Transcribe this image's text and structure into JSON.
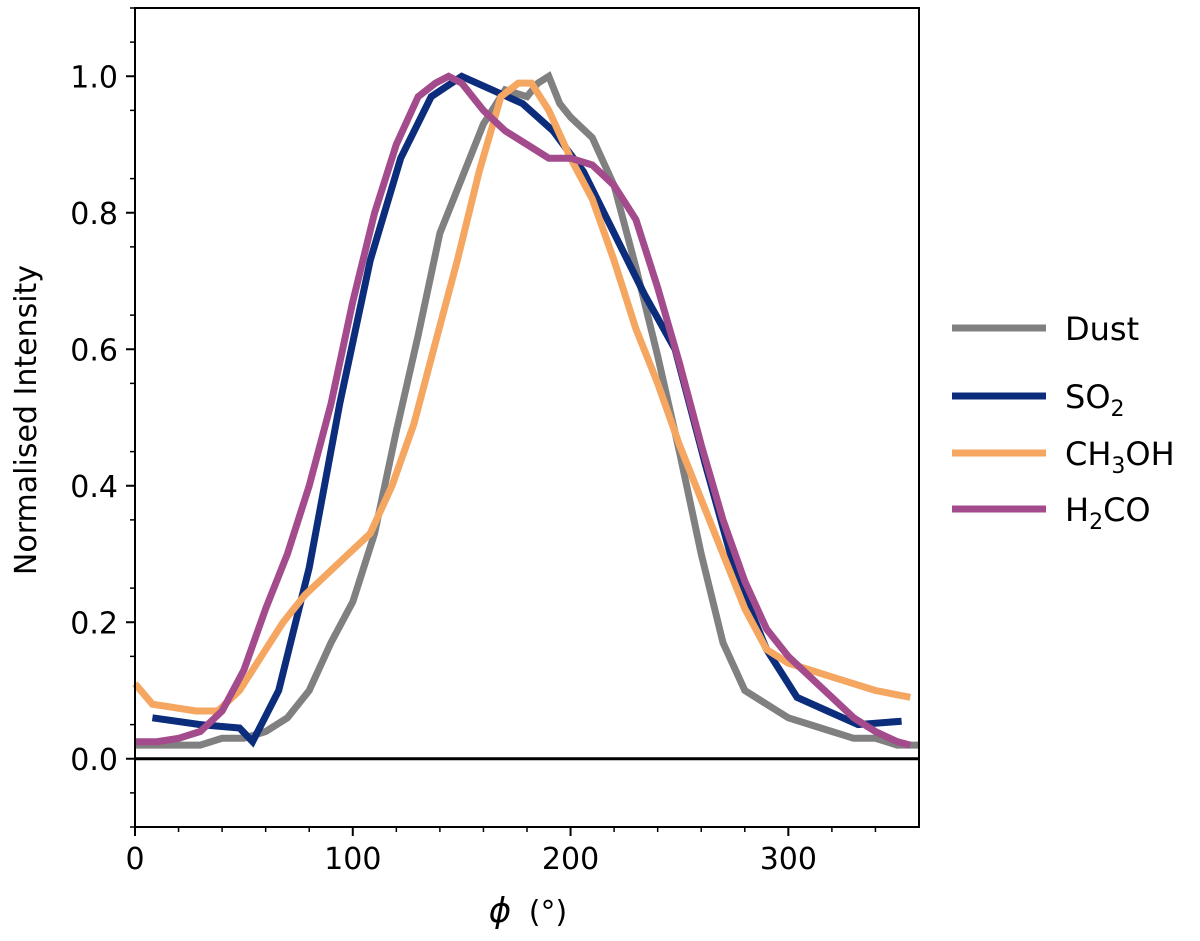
{
  "chart_data": {
    "type": "line",
    "title": "",
    "xlabel": "ϕ (°)",
    "xlabel_symbol": "ϕ",
    "xlabel_unit": "(°)",
    "ylabel": "Normalised Intensity",
    "xlim": [
      0,
      360
    ],
    "ylim": [
      -0.1,
      1.1
    ],
    "xticks": [
      0,
      100,
      200,
      300
    ],
    "xtick_labels": [
      "0",
      "100",
      "200",
      "300"
    ],
    "yticks": [
      0.0,
      0.2,
      0.4,
      0.6,
      0.8,
      1.0
    ],
    "ytick_labels": [
      "0.0",
      "0.2",
      "0.4",
      "0.6",
      "0.8",
      "1.0"
    ],
    "hline": 0.0,
    "grid": false,
    "legend": "outside-right",
    "series": [
      {
        "name": "Dust",
        "color": "#808080",
        "x": [
          0,
          10,
          20,
          30,
          40,
          50,
          60,
          70,
          80,
          90,
          100,
          110,
          120,
          130,
          140,
          150,
          160,
          170,
          180,
          185,
          190,
          195,
          200,
          210,
          220,
          230,
          240,
          250,
          260,
          270,
          280,
          290,
          300,
          310,
          320,
          330,
          340,
          350,
          360
        ],
        "values": [
          0.02,
          0.02,
          0.02,
          0.02,
          0.03,
          0.03,
          0.04,
          0.06,
          0.1,
          0.17,
          0.23,
          0.33,
          0.48,
          0.62,
          0.77,
          0.85,
          0.93,
          0.98,
          0.97,
          0.99,
          1.0,
          0.96,
          0.94,
          0.91,
          0.84,
          0.72,
          0.59,
          0.45,
          0.3,
          0.17,
          0.1,
          0.08,
          0.06,
          0.05,
          0.04,
          0.03,
          0.03,
          0.02,
          0.02
        ]
      },
      {
        "name": "SO2",
        "name_main": "SO",
        "name_sub": "2",
        "color": "#0c2c7c",
        "x": [
          8,
          30,
          48,
          54,
          66,
          80,
          94,
          108,
          122,
          136,
          150,
          164,
          178,
          192,
          206,
          220,
          234,
          248,
          262,
          276,
          290,
          304,
          318,
          332,
          352
        ],
        "values": [
          0.06,
          0.05,
          0.045,
          0.025,
          0.1,
          0.28,
          0.52,
          0.73,
          0.88,
          0.97,
          1.0,
          0.98,
          0.96,
          0.92,
          0.86,
          0.77,
          0.68,
          0.6,
          0.43,
          0.27,
          0.16,
          0.09,
          0.07,
          0.05,
          0.055
        ]
      },
      {
        "name": "CH3OH",
        "name_pre": "CH",
        "name_sub": "3",
        "name_post": "OH",
        "color": "#f5a660",
        "x": [
          0,
          8,
          18,
          28,
          38,
          48,
          58,
          68,
          78,
          88,
          98,
          108,
          118,
          128,
          138,
          148,
          158,
          168,
          176,
          182,
          190,
          200,
          210,
          220,
          230,
          240,
          250,
          260,
          270,
          280,
          290,
          300,
          310,
          320,
          330,
          340,
          356
        ],
        "values": [
          0.11,
          0.08,
          0.075,
          0.07,
          0.07,
          0.1,
          0.15,
          0.2,
          0.24,
          0.27,
          0.3,
          0.33,
          0.4,
          0.49,
          0.61,
          0.73,
          0.86,
          0.97,
          0.99,
          0.99,
          0.95,
          0.88,
          0.82,
          0.73,
          0.63,
          0.55,
          0.46,
          0.38,
          0.3,
          0.22,
          0.16,
          0.14,
          0.13,
          0.12,
          0.11,
          0.1,
          0.09
        ]
      },
      {
        "name": "H2CO",
        "name_pre": "H",
        "name_sub": "2",
        "name_post": "CO",
        "color": "#a34b8c",
        "x": [
          0,
          10,
          20,
          30,
          40,
          50,
          60,
          70,
          80,
          90,
          100,
          110,
          120,
          130,
          138,
          144,
          150,
          160,
          170,
          180,
          190,
          200,
          210,
          220,
          230,
          240,
          250,
          260,
          270,
          280,
          290,
          300,
          310,
          320,
          330,
          340,
          350,
          356
        ],
        "values": [
          0.025,
          0.025,
          0.03,
          0.04,
          0.07,
          0.13,
          0.22,
          0.3,
          0.4,
          0.52,
          0.67,
          0.8,
          0.9,
          0.97,
          0.99,
          1.0,
          0.99,
          0.95,
          0.92,
          0.9,
          0.88,
          0.88,
          0.87,
          0.84,
          0.79,
          0.69,
          0.58,
          0.46,
          0.35,
          0.26,
          0.19,
          0.15,
          0.12,
          0.09,
          0.06,
          0.04,
          0.025,
          0.02
        ]
      }
    ]
  }
}
